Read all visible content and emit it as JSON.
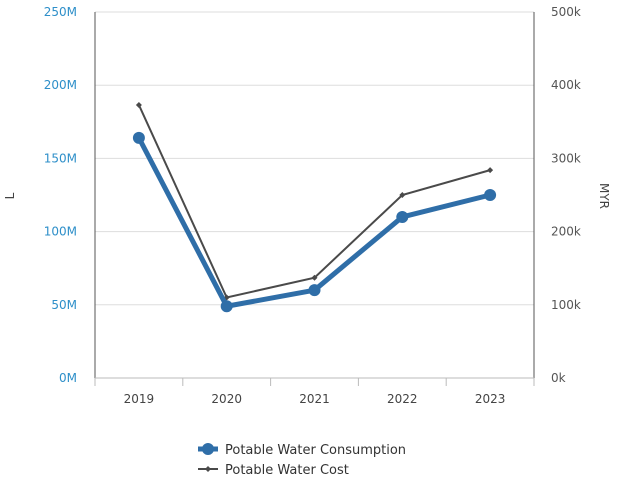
{
  "chart_data": {
    "type": "line",
    "categories": [
      "2019",
      "2020",
      "2021",
      "2022",
      "2023"
    ],
    "series": [
      {
        "name": "Potable Water Consumption",
        "axis": "left",
        "color": "#2f6ea8",
        "values": [
          164000000,
          49000000,
          60000000,
          110000000,
          125000000
        ]
      },
      {
        "name": "Potable Water Cost",
        "axis": "right",
        "color": "#4a4a4a",
        "values": [
          373000,
          110000,
          137000,
          250000,
          284000
        ]
      }
    ],
    "y_left": {
      "label": "L",
      "range": [
        0,
        250000000
      ],
      "ticks": [
        {
          "value": 0,
          "label": "0M"
        },
        {
          "value": 50000000,
          "label": "50M"
        },
        {
          "value": 100000000,
          "label": "100M"
        },
        {
          "value": 150000000,
          "label": "150M"
        },
        {
          "value": 200000000,
          "label": "200M"
        },
        {
          "value": 250000000,
          "label": "250M"
        }
      ]
    },
    "y_right": {
      "label": "MYR",
      "range": [
        0,
        500000
      ],
      "ticks": [
        {
          "value": 0,
          "label": "0k"
        },
        {
          "value": 100000,
          "label": "100k"
        },
        {
          "value": 200000,
          "label": "200k"
        },
        {
          "value": 300000,
          "label": "300k"
        },
        {
          "value": 400000,
          "label": "400k"
        },
        {
          "value": 500000,
          "label": "500k"
        }
      ]
    },
    "grid": true,
    "legend": "bottom-center"
  }
}
